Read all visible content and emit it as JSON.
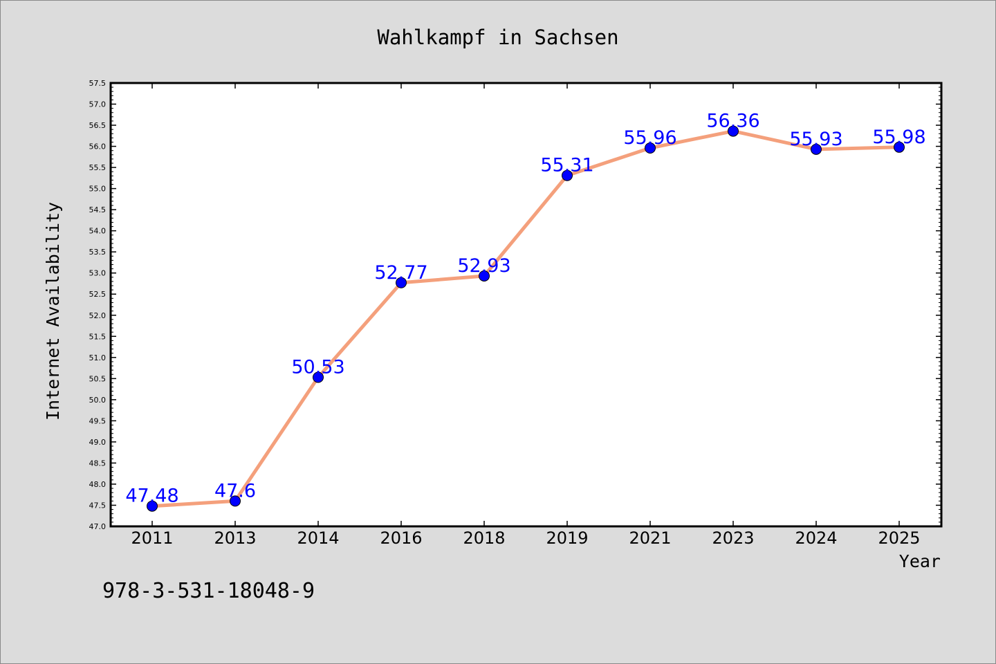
{
  "chart_data": {
    "type": "line",
    "title": "Wahlkampf in Sachsen",
    "xlabel": "Year",
    "ylabel": "Internet Availability",
    "categories": [
      "2011",
      "2013",
      "2014",
      "2016",
      "2018",
      "2019",
      "2021",
      "2023",
      "2024",
      "2025"
    ],
    "series": [
      {
        "values": [
          47.48,
          47.6,
          50.53,
          52.77,
          52.93,
          55.31,
          55.96,
          56.36,
          55.93,
          55.98
        ],
        "labels": [
          "47.48",
          "47.6",
          "50.53",
          "52.77",
          "52.93",
          "55.31",
          "55.96",
          "56.36",
          "55.93",
          "55.98"
        ],
        "line_color": "#f4a07c",
        "marker_color": "#0000ff"
      }
    ],
    "ylim": [
      47.0,
      57.5
    ],
    "ytick_step": 0.5,
    "grid": false,
    "legend": "none"
  },
  "footer_text": "978-3-531-18048-9",
  "colors": {
    "background": "#dcdcdc",
    "plot_area": "#ffffff",
    "label_color": "#0000ff"
  }
}
